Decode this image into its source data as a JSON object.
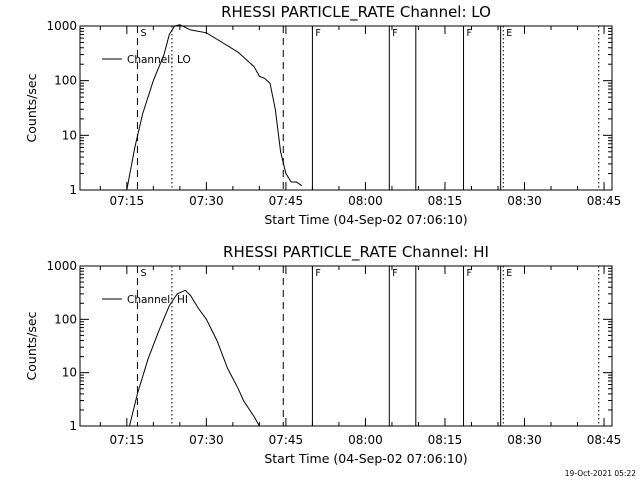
{
  "chart_data": [
    {
      "type": "line",
      "title": "RHESSI PARTICLE_RATE Channel: LO",
      "xlabel": "Start Time (04-Sep-02 07:06:10)",
      "ylabel": "Counts/sec",
      "yscale": "log",
      "ylim": [
        1,
        1000
      ],
      "xlim": [
        "07:06:10",
        "08:46:30"
      ],
      "x_ticks": [
        "07:15",
        "07:30",
        "07:45",
        "08:00",
        "08:15",
        "08:30",
        "08:45"
      ],
      "y_ticks": [
        "1",
        "10",
        "100",
        "1000"
      ],
      "legend": "top-left",
      "series": [
        {
          "name": "Channel: LO",
          "x": [
            "07:15:00",
            "07:16:30",
            "07:18:00",
            "07:20:00",
            "07:22:00",
            "07:23:00",
            "07:24:00",
            "07:25:00",
            "07:27:00",
            "07:30:00",
            "07:33:00",
            "07:36:00",
            "07:39:00",
            "07:40:00",
            "07:41:00",
            "07:42:00",
            "07:43:00",
            "07:44:00",
            "07:45:00",
            "07:46:00",
            "07:47:00",
            "07:48:00"
          ],
          "values": [
            1,
            6,
            25,
            100,
            300,
            700,
            1000,
            1050,
            850,
            750,
            500,
            330,
            180,
            120,
            110,
            90,
            30,
            5,
            2,
            1.4,
            1.4,
            1.2
          ]
        }
      ],
      "markers": [
        {
          "label": "S",
          "time": "07:17:00",
          "style": "dashed"
        },
        {
          "label": "",
          "time": "07:23:30",
          "style": "dotted"
        },
        {
          "label": "",
          "time": "07:44:30",
          "style": "dashed"
        },
        {
          "label": "F",
          "time": "07:50:00",
          "style": "solid"
        },
        {
          "label": "F",
          "time": "08:04:30",
          "style": "solid"
        },
        {
          "label": "",
          "time": "08:09:30",
          "style": "solid"
        },
        {
          "label": "F",
          "time": "08:18:30",
          "style": "solid"
        },
        {
          "label": "",
          "time": "08:25:30",
          "style": "solid"
        },
        {
          "label": "E",
          "time": "08:26:00",
          "style": "dotted"
        },
        {
          "label": "",
          "time": "08:44:00",
          "style": "dotted"
        }
      ]
    },
    {
      "type": "line",
      "title": "RHESSI PARTICLE_RATE Channel: HI",
      "xlabel": "Start Time (04-Sep-02 07:06:10)",
      "ylabel": "Counts/sec",
      "yscale": "log",
      "ylim": [
        1,
        1000
      ],
      "xlim": [
        "07:06:10",
        "08:46:30"
      ],
      "x_ticks": [
        "07:15",
        "07:30",
        "07:45",
        "08:00",
        "08:15",
        "08:30",
        "08:45"
      ],
      "y_ticks": [
        "1",
        "10",
        "100",
        "1000"
      ],
      "legend": "top-left",
      "series": [
        {
          "name": "Channel: HI",
          "x": [
            "07:15:30",
            "07:17:00",
            "07:19:00",
            "07:21:00",
            "07:23:00",
            "07:24:30",
            "07:26:00",
            "07:27:00",
            "07:28:30",
            "07:30:00",
            "07:32:00",
            "07:34:00",
            "07:36:00",
            "07:37:00",
            "07:39:00",
            "07:40:00"
          ],
          "values": [
            1,
            4,
            18,
            60,
            180,
            300,
            350,
            280,
            160,
            100,
            40,
            12,
            5,
            3,
            1.5,
            1
          ]
        }
      ],
      "markers": [
        {
          "label": "S",
          "time": "07:17:00",
          "style": "dashed"
        },
        {
          "label": "",
          "time": "07:23:30",
          "style": "dotted"
        },
        {
          "label": "",
          "time": "07:44:30",
          "style": "dashed"
        },
        {
          "label": "F",
          "time": "07:50:00",
          "style": "solid"
        },
        {
          "label": "F",
          "time": "08:04:30",
          "style": "solid"
        },
        {
          "label": "",
          "time": "08:09:30",
          "style": "solid"
        },
        {
          "label": "F",
          "time": "08:18:30",
          "style": "solid"
        },
        {
          "label": "",
          "time": "08:25:30",
          "style": "solid"
        },
        {
          "label": "E",
          "time": "08:26:00",
          "style": "dotted"
        },
        {
          "label": "",
          "time": "08:44:00",
          "style": "dotted"
        }
      ]
    }
  ],
  "timestamp": "19-Oct-2021 05:22"
}
